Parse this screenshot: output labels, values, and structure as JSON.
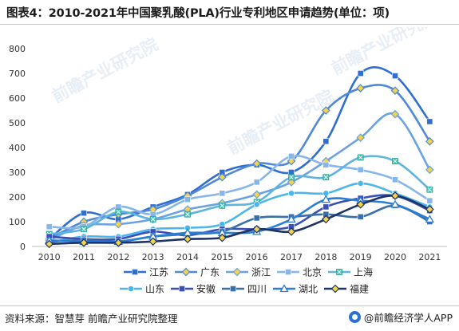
{
  "title": "图表4：2010-2021年中国聚乳酸(PLA)行业专利地区申请趋势(单位：项)",
  "source": "资料来源：智慧芽 前瞻产业研究院整理",
  "brand": "@前瞻经济学人APP",
  "watermark": "前瞻产业研究院",
  "chart_data": {
    "type": "line",
    "smooth": true,
    "categories": [
      "2010",
      "2011",
      "2012",
      "2013",
      "2014",
      "2015",
      "2016",
      "2017",
      "2018",
      "2019",
      "2020",
      "2021"
    ],
    "ylim": [
      0,
      800
    ],
    "yticks": [
      0,
      100,
      200,
      300,
      400,
      500,
      600,
      700,
      800
    ],
    "grid": false,
    "legend_position": "bottom",
    "series": [
      {
        "name": "江苏",
        "color": "#2e6fd1",
        "marker": "square",
        "values": [
          30,
          135,
          110,
          160,
          210,
          300,
          330,
          300,
          425,
          700,
          690,
          505
        ]
      },
      {
        "name": "广东",
        "color": "#4f89d8",
        "marker": "diamond",
        "values": [
          30,
          100,
          130,
          150,
          205,
          280,
          335,
          345,
          550,
          640,
          630,
          425
        ]
      },
      {
        "name": "浙江",
        "color": "#6aa2e3",
        "marker": "diamond",
        "values": [
          25,
          85,
          90,
          110,
          150,
          175,
          210,
          260,
          345,
          440,
          535,
          310
        ]
      },
      {
        "name": "北京",
        "color": "#86b6ea",
        "marker": "square",
        "values": [
          80,
          80,
          160,
          130,
          190,
          215,
          260,
          365,
          330,
          310,
          270,
          185
        ]
      },
      {
        "name": "上海",
        "color": "#5eb4de",
        "marker": "xsquare",
        "values": [
          50,
          70,
          140,
          110,
          130,
          165,
          180,
          280,
          280,
          360,
          345,
          230
        ]
      },
      {
        "name": "山东",
        "color": "#4cb6ec",
        "marker": "circle",
        "values": [
          15,
          40,
          40,
          70,
          75,
          90,
          170,
          215,
          215,
          255,
          215,
          160
        ]
      },
      {
        "name": "安徽",
        "color": "#3b4fb8",
        "marker": "square",
        "values": [
          40,
          30,
          30,
          60,
          45,
          70,
          70,
          80,
          160,
          195,
          205,
          145
        ]
      },
      {
        "name": "四川",
        "color": "#3a6fa7",
        "marker": "square",
        "values": [
          20,
          25,
          20,
          40,
          50,
          60,
          115,
          120,
          130,
          120,
          165,
          100
        ]
      },
      {
        "name": "湖北",
        "color": "#2b7ed6",
        "marker": "triangle",
        "values": [
          25,
          20,
          20,
          40,
          55,
          55,
          60,
          110,
          190,
          185,
          170,
          110
        ]
      },
      {
        "name": "福建",
        "color": "#1e3366",
        "marker": "diamond",
        "values": [
          10,
          15,
          15,
          20,
          30,
          35,
          70,
          60,
          110,
          170,
          205,
          150
        ]
      }
    ]
  }
}
